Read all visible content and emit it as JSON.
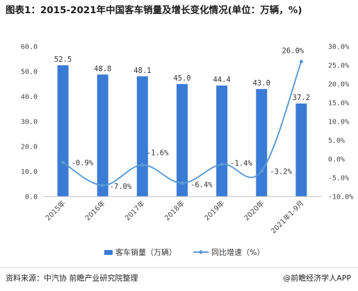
{
  "chart_data": {
    "type": "bar+line",
    "title": "图表1：2015-2021年中国客车销量及增长变化情况(单位：万辆，%)",
    "categories": [
      "2015年",
      "2016年",
      "2017年",
      "2018年",
      "2019年",
      "2020年",
      "2021年1-9月"
    ],
    "series": [
      {
        "name": "客车销量（万辆）",
        "type": "bar",
        "axis": "left",
        "values": [
          52.5,
          48.8,
          48.1,
          45.0,
          44.4,
          43.0,
          37.2
        ],
        "labels": [
          "52.5",
          "48.8",
          "48.1",
          "45.0",
          "44.4",
          "43.0",
          "37.2"
        ],
        "color": "#3a7bd5"
      },
      {
        "name": "同比增速（%）",
        "type": "line",
        "axis": "right",
        "values": [
          -0.9,
          -7.0,
          -1.6,
          -6.4,
          -1.4,
          -3.2,
          26.0
        ],
        "labels": [
          "-0.9%",
          "-7.0%",
          "-1.6%",
          "-6.4%",
          "-1.4%",
          "-3.2%",
          "26.0%"
        ],
        "color": "#5b9bd5"
      }
    ],
    "y_left": {
      "range": [
        0,
        60
      ],
      "ticks": [
        "0.0",
        "10.0",
        "20.0",
        "30.0",
        "40.0",
        "50.0",
        "60.0"
      ]
    },
    "y_right": {
      "range": [
        -10,
        30
      ],
      "ticks": [
        "-10.0%",
        "-5.0%",
        "0.0%",
        "5.0%",
        "10.0%",
        "15.0%",
        "20.0%",
        "25.0%",
        "30.0%"
      ]
    },
    "grid": false,
    "legend_position": "bottom"
  },
  "footer": {
    "source": "资料来源：中汽协 前瞻产业研究院整理",
    "brand": "@前瞻经济学人APP"
  },
  "colors": {
    "bar": "#3a7bd5",
    "line": "#5b9bd5"
  }
}
